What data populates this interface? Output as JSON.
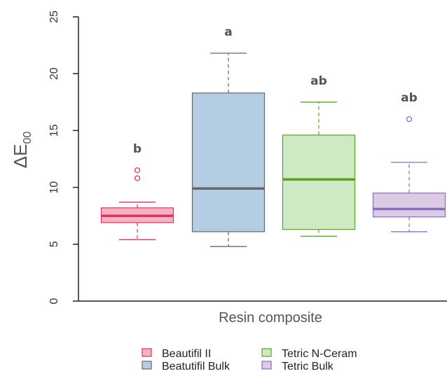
{
  "chart_data": {
    "type": "box",
    "xlabel": "Resin composite",
    "ylabel_main": "ΔE",
    "ylabel_sub": "00",
    "ylim": [
      0,
      25
    ],
    "yticks": [
      0,
      5,
      10,
      15,
      20,
      25
    ],
    "grid": false,
    "legend_position": "bottom",
    "series": [
      {
        "name": "Beautifil II",
        "color": "#d6336c",
        "fill": "#f7b2be",
        "min": 5.4,
        "q1": 6.9,
        "median": 7.5,
        "q3": 8.2,
        "max": 8.7,
        "outliers": [
          10.8,
          11.5
        ],
        "significance": "b"
      },
      {
        "name": "Beatutifil Bulk",
        "color": "#666666",
        "fill": "#b4cde2",
        "min": 4.8,
        "q1": 6.1,
        "median": 9.9,
        "q3": 18.3,
        "max": 21.8,
        "outliers": [],
        "significance": "a"
      },
      {
        "name": "Tetric N-Ceram",
        "color": "#5aa320",
        "fill": "#cfe9c5",
        "min": 5.7,
        "q1": 6.3,
        "median": 10.7,
        "q3": 14.6,
        "max": 17.5,
        "outliers": [],
        "significance": "ab"
      },
      {
        "name": "Tetric Bulk",
        "color": "#8070b8",
        "fill": "#ddcbe5",
        "min": 6.1,
        "q1": 7.4,
        "median": 8.1,
        "q3": 9.5,
        "max": 12.2,
        "outliers": [
          16.0
        ],
        "significance": "ab"
      }
    ]
  }
}
